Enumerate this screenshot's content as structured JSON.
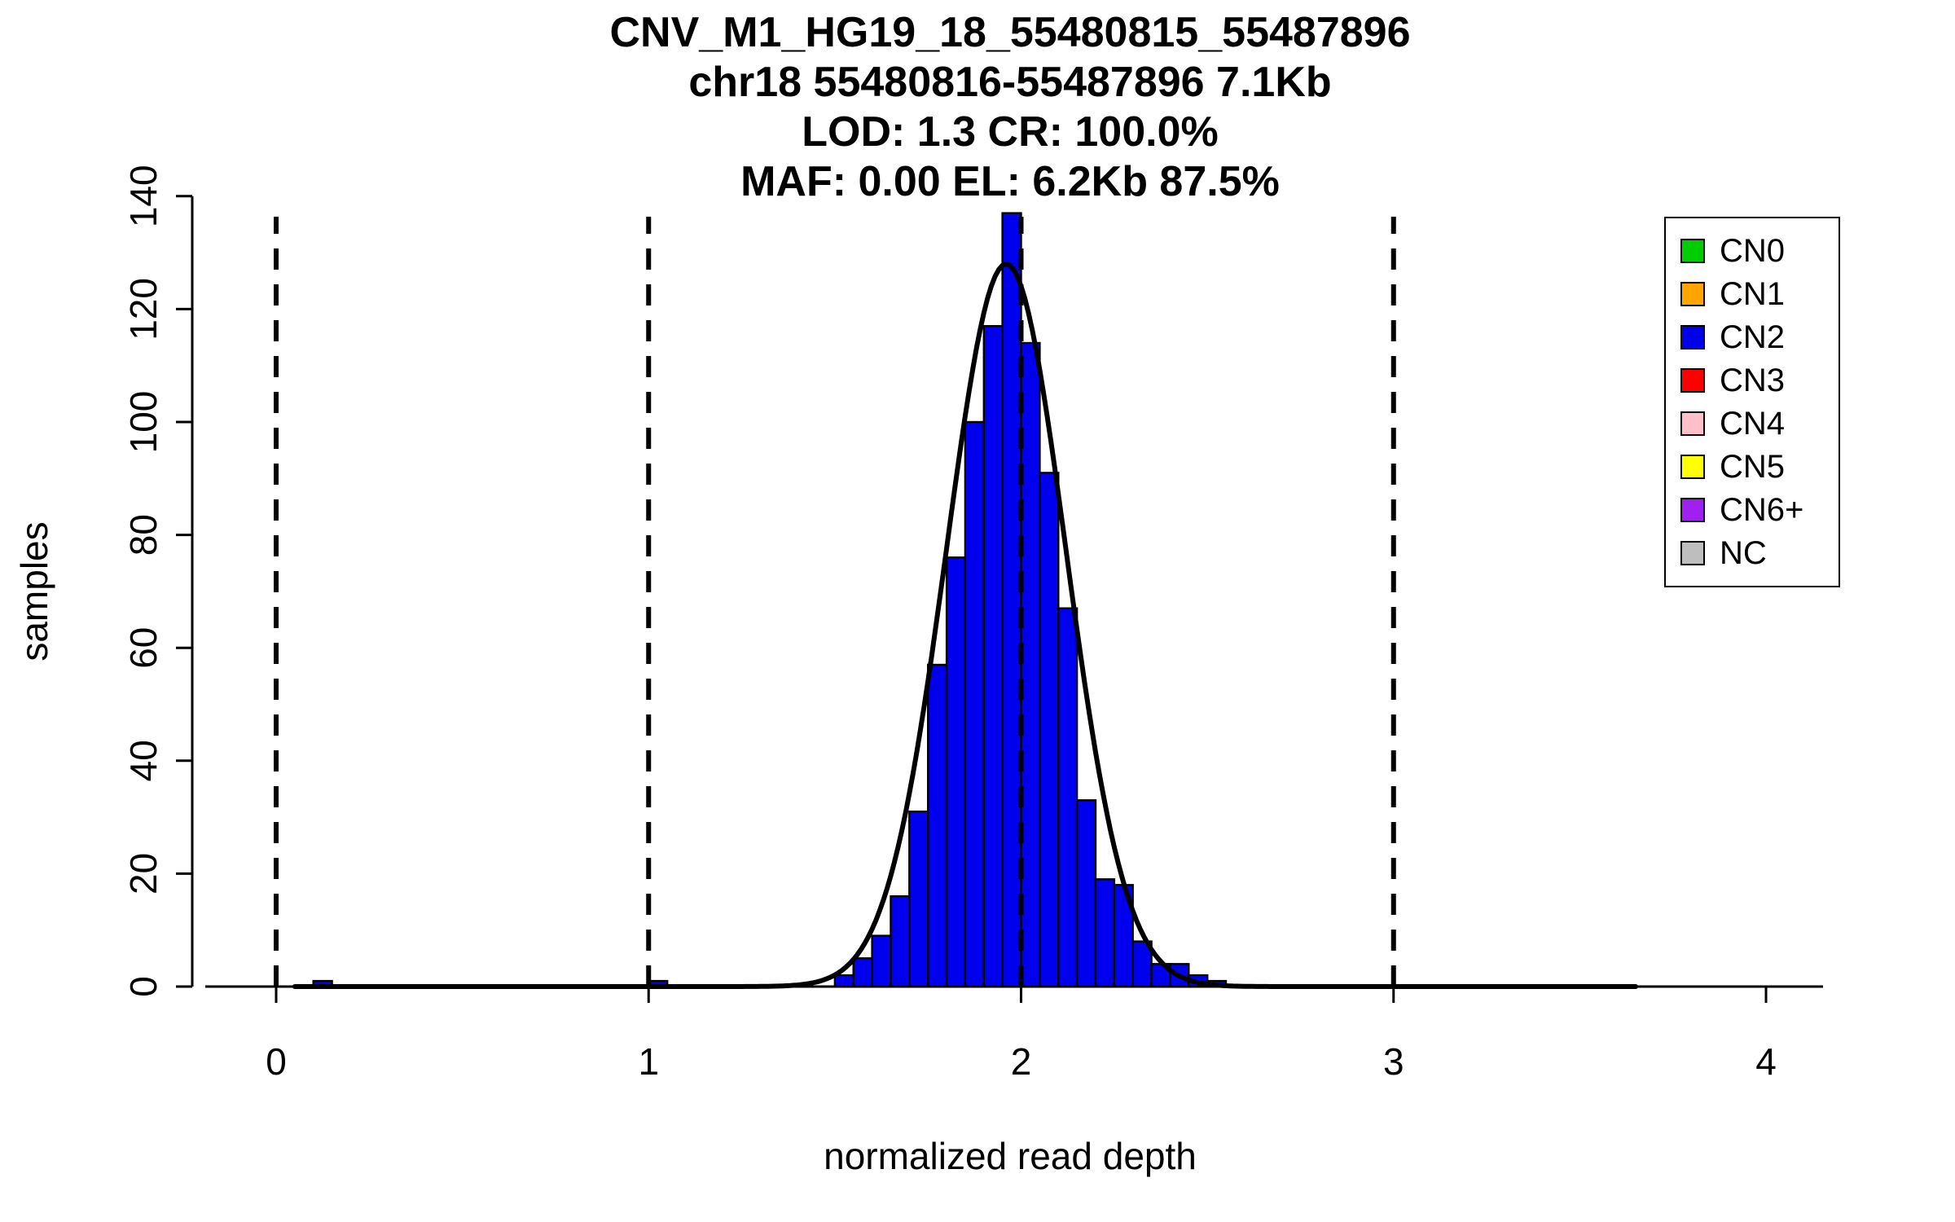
{
  "chart_data": {
    "type": "bar",
    "subtype": "histogram-with-density",
    "titles": [
      "CNV_M1_HG19_18_55480815_55487896",
      "chr18 55480816-55487896 7.1Kb",
      "LOD: 1.3 CR: 100.0%",
      "MAF: 0.00 EL: 6.2Kb 87.5%"
    ],
    "xlabel": "normalized read depth",
    "ylabel": "samples",
    "xlim": [
      -0.225,
      4.15
    ],
    "ylim": [
      0,
      140
    ],
    "x_ticks": [
      0,
      1,
      2,
      3,
      4
    ],
    "y_ticks": [
      0,
      20,
      40,
      60,
      80,
      100,
      120,
      140
    ],
    "grid": false,
    "dashed_vlines": [
      0,
      1,
      2,
      3
    ],
    "histogram": {
      "bin_width": 0.05,
      "color": "#0000EE",
      "border_color": "#000000",
      "bins": [
        {
          "x": 0.1,
          "count": 1
        },
        {
          "x": 1.0,
          "count": 1
        },
        {
          "x": 1.5,
          "count": 2
        },
        {
          "x": 1.55,
          "count": 5
        },
        {
          "x": 1.6,
          "count": 9
        },
        {
          "x": 1.65,
          "count": 16
        },
        {
          "x": 1.7,
          "count": 31
        },
        {
          "x": 1.75,
          "count": 57
        },
        {
          "x": 1.8,
          "count": 76
        },
        {
          "x": 1.85,
          "count": 100
        },
        {
          "x": 1.9,
          "count": 117
        },
        {
          "x": 1.95,
          "count": 137
        },
        {
          "x": 2.0,
          "count": 114
        },
        {
          "x": 2.05,
          "count": 91
        },
        {
          "x": 2.1,
          "count": 67
        },
        {
          "x": 2.15,
          "count": 33
        },
        {
          "x": 2.2,
          "count": 19
        },
        {
          "x": 2.25,
          "count": 18
        },
        {
          "x": 2.3,
          "count": 8
        },
        {
          "x": 2.35,
          "count": 4
        },
        {
          "x": 2.4,
          "count": 4
        },
        {
          "x": 2.45,
          "count": 2
        },
        {
          "x": 2.5,
          "count": 1
        }
      ]
    },
    "density_curve": {
      "mean": 1.96,
      "sd": 0.16,
      "peak": 128,
      "color": "#000000",
      "x_start": 0.05,
      "x_end": 3.65
    },
    "legend": {
      "position": "top-right",
      "items": [
        {
          "label": "CN0",
          "color": "#00CD00"
        },
        {
          "label": "CN1",
          "color": "#FFA500"
        },
        {
          "label": "CN2",
          "color": "#0000EE"
        },
        {
          "label": "CN3",
          "color": "#FF0000"
        },
        {
          "label": "CN4",
          "color": "#FFC0CB"
        },
        {
          "label": "CN5",
          "color": "#FFFF00"
        },
        {
          "label": "CN6+",
          "color": "#A020F0"
        },
        {
          "label": "NC",
          "color": "#BEBEBE"
        }
      ]
    }
  }
}
